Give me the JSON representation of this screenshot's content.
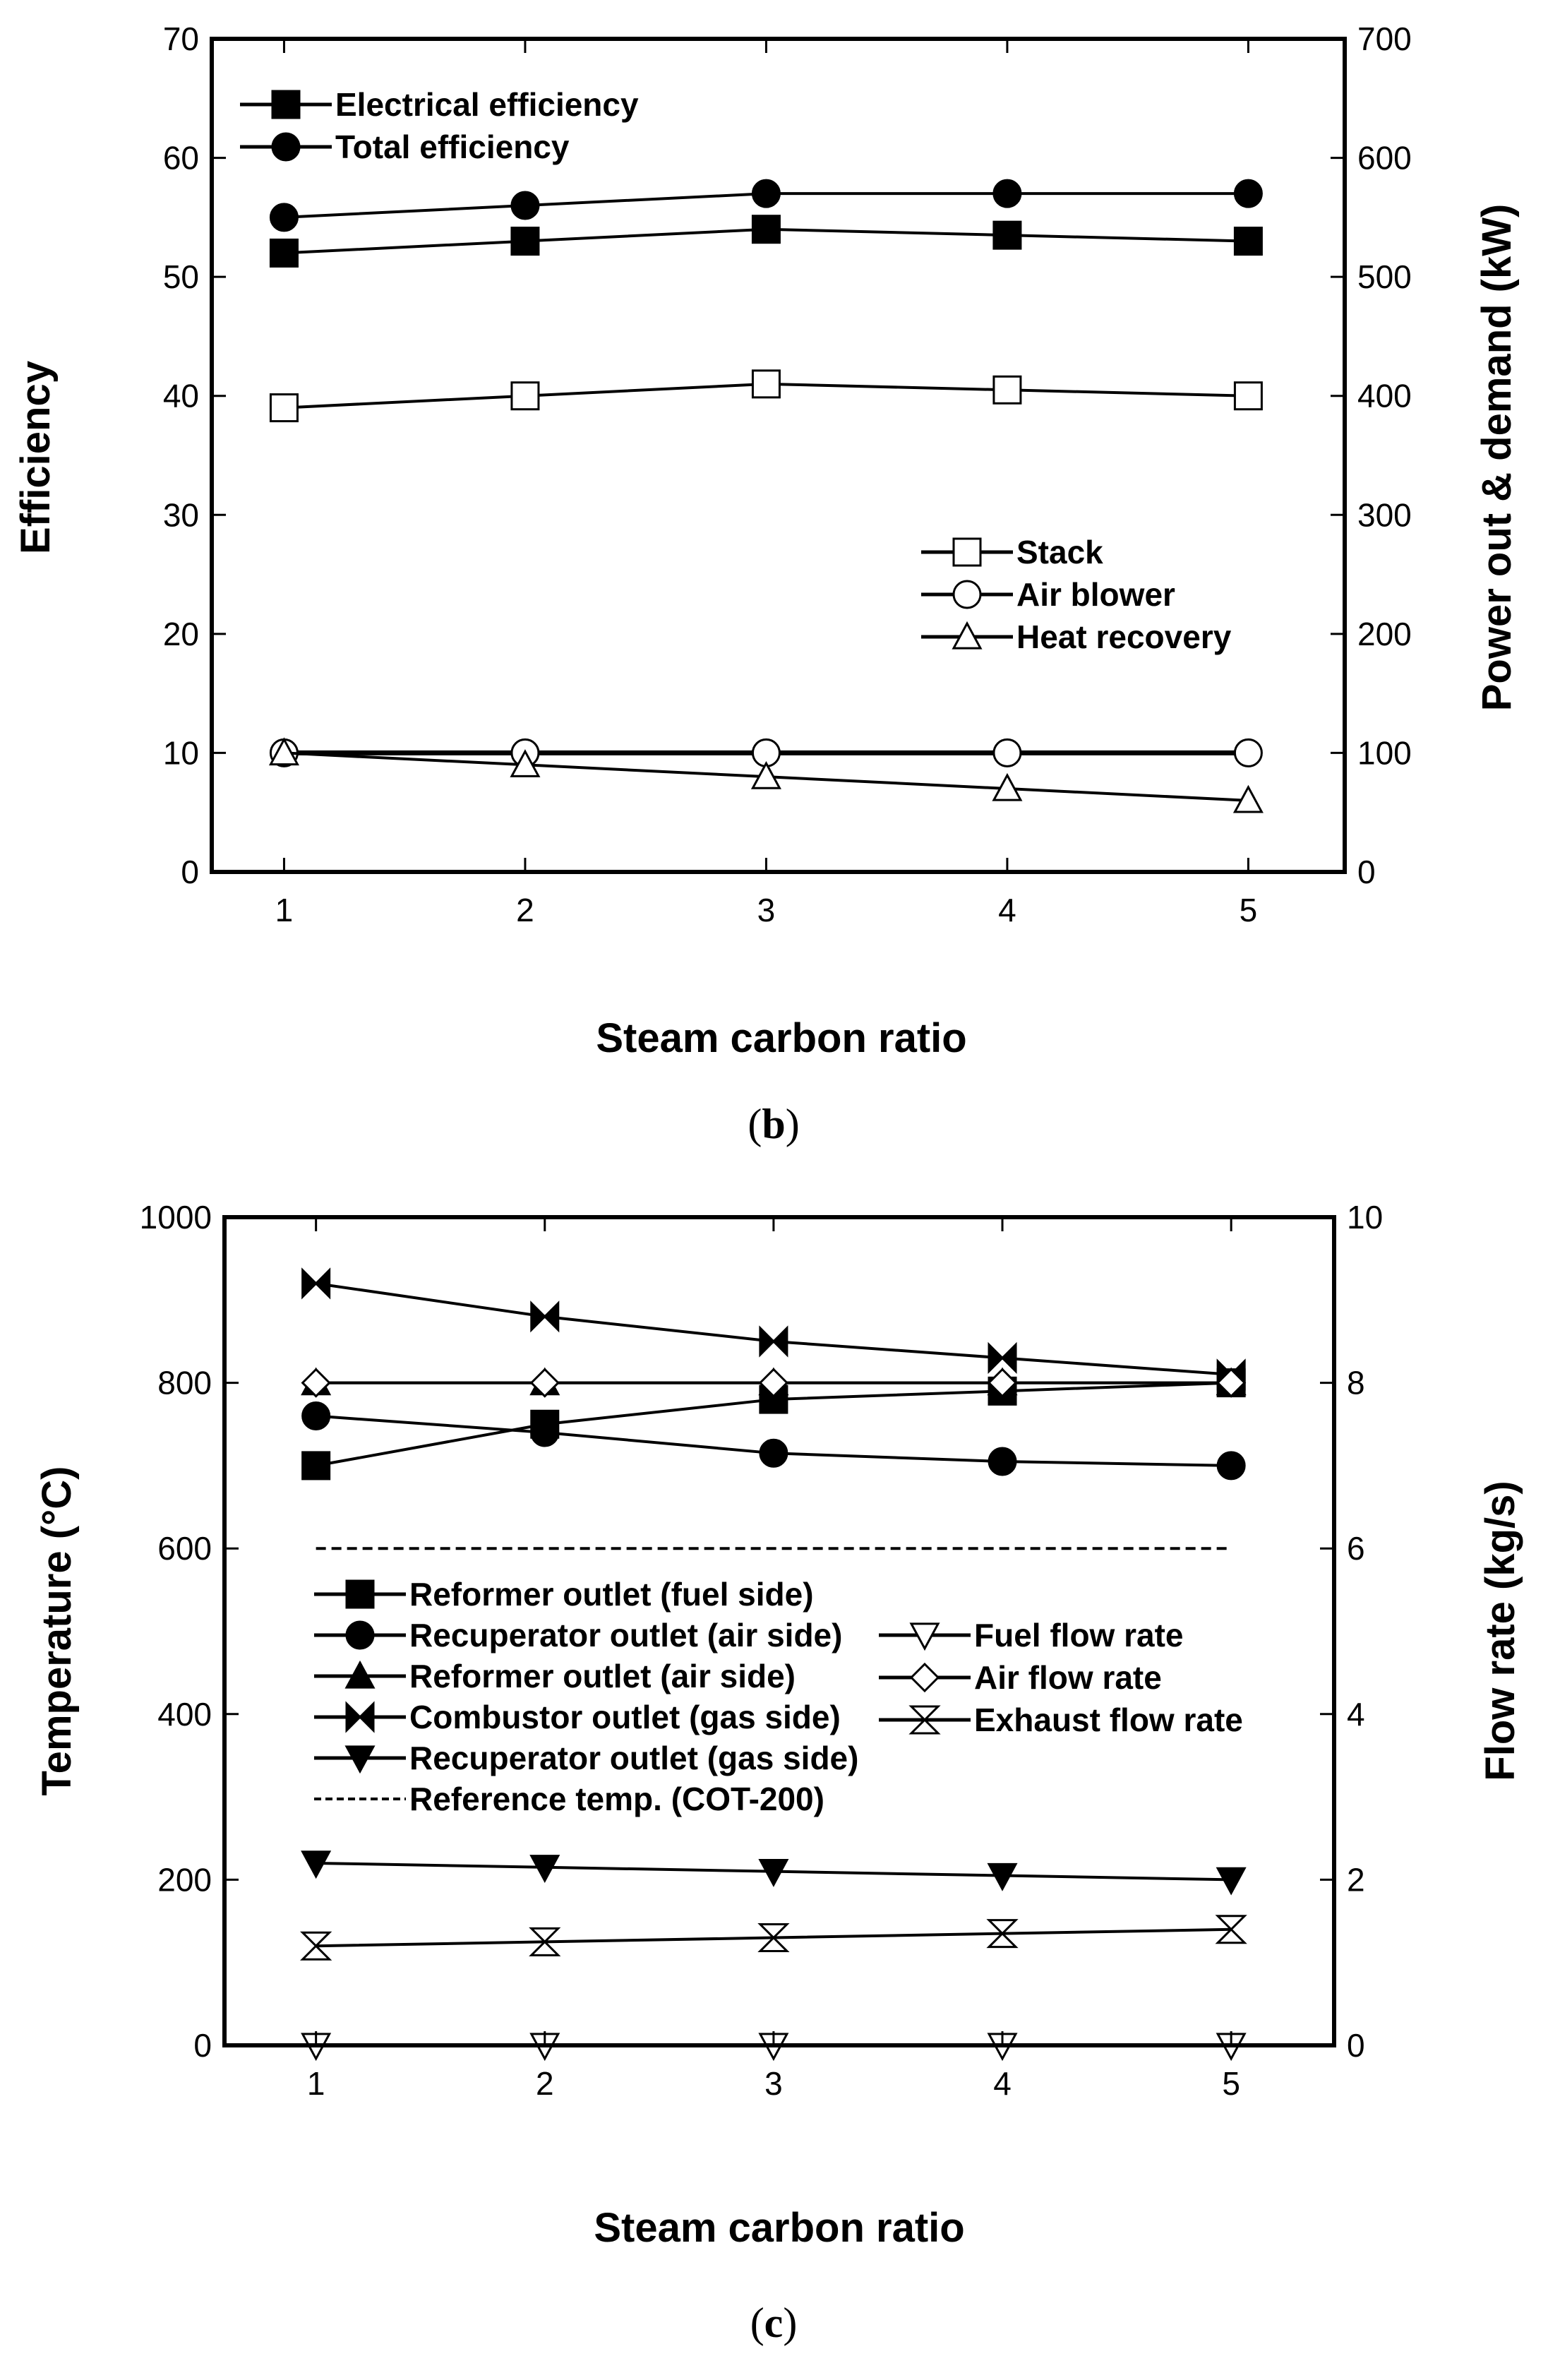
{
  "chart_data": [
    {
      "type": "line",
      "panel": "b",
      "caption_letter": "b",
      "xlabel": "Steam carbon ratio",
      "ylabel_left": "Efficiency",
      "ylabel_right": "Power out & demand (kW)",
      "x": [
        1,
        2,
        3,
        4,
        5
      ],
      "xlim": [
        0.7,
        5.4
      ],
      "ylim_left": [
        0,
        70
      ],
      "ylim_right": [
        0,
        700
      ],
      "xticks": [
        1,
        2,
        3,
        4,
        5
      ],
      "yticks_left": [
        0,
        10,
        20,
        30,
        40,
        50,
        60,
        70
      ],
      "yticks_right": [
        0,
        100,
        200,
        300,
        400,
        500,
        600,
        700
      ],
      "series": [
        {
          "name": "Electrical efficiency",
          "axis": "left",
          "marker": "square-filled",
          "values": [
            52,
            53,
            54,
            53.5,
            53
          ]
        },
        {
          "name": "Total efficiency",
          "axis": "left",
          "marker": "circle-filled",
          "values": [
            55,
            56,
            57,
            57,
            57
          ]
        },
        {
          "name": "Stack",
          "axis": "right",
          "marker": "square-open",
          "values": [
            390,
            400,
            410,
            405,
            400
          ]
        },
        {
          "name": "Air blower",
          "axis": "right",
          "marker": "circle-open",
          "values": [
            100,
            100,
            100,
            100,
            100
          ]
        },
        {
          "name": "Heat recovery",
          "axis": "right",
          "marker": "triangle-open",
          "values": [
            100,
            90,
            80,
            70,
            60
          ]
        }
      ],
      "legend_groups": [
        {
          "placement": "top-left",
          "entries": [
            "Electrical efficiency",
            "Total efficiency"
          ]
        },
        {
          "placement": "middle-right",
          "entries": [
            "Stack",
            "Air blower",
            "Heat recovery"
          ]
        }
      ]
    },
    {
      "type": "line",
      "panel": "c",
      "caption_letter": "c",
      "xlabel": "Steam carbon ratio",
      "ylabel_left": "Temperature (°C)",
      "ylabel_right": "Flow rate (kg/s)",
      "x": [
        1,
        2,
        3,
        4,
        5
      ],
      "xlim": [
        0.6,
        5.45
      ],
      "ylim_left": [
        0,
        1000
      ],
      "ylim_right": [
        0,
        10
      ],
      "xticks": [
        1,
        2,
        3,
        4,
        5
      ],
      "yticks_left": [
        0,
        200,
        400,
        600,
        800,
        1000
      ],
      "yticks_right": [
        0,
        2,
        4,
        6,
        8,
        10
      ],
      "series": [
        {
          "name": "Reformer outlet (fuel side)",
          "axis": "left",
          "marker": "square-filled",
          "values": [
            700,
            750,
            780,
            790,
            800
          ]
        },
        {
          "name": "Recuperator outlet (air side)",
          "axis": "left",
          "marker": "circle-filled",
          "values": [
            760,
            740,
            715,
            705,
            700
          ]
        },
        {
          "name": "Reformer outlet (air side)",
          "axis": "left",
          "marker": "triangle-up-filled",
          "values": [
            800,
            800,
            800,
            800,
            800
          ]
        },
        {
          "name": "Combustor outlet (gas side)",
          "axis": "left",
          "marker": "bowtie-filled",
          "values": [
            920,
            880,
            850,
            830,
            810
          ]
        },
        {
          "name": "Recuperator outlet (gas side)",
          "axis": "left",
          "marker": "triangle-down-filled",
          "values": [
            220,
            215,
            210,
            205,
            200
          ]
        },
        {
          "name": "Reference temp. (COT-200)",
          "axis": "left",
          "marker": "none",
          "dashed": true,
          "values": [
            600,
            600,
            600,
            600,
            600
          ]
        },
        {
          "name": "Fuel flow rate",
          "axis": "right",
          "marker": "triangle-down-open",
          "values": [
            0,
            0,
            0,
            0,
            0
          ]
        },
        {
          "name": "Air flow rate",
          "axis": "right",
          "marker": "diamond-open",
          "values": [
            8,
            8,
            8,
            8,
            8
          ]
        },
        {
          "name": "Exhaust flow rate",
          "axis": "right",
          "marker": "hourglass-open",
          "values": [
            1.2,
            1.25,
            1.3,
            1.35,
            1.4
          ]
        }
      ],
      "legend_groups": [
        {
          "placement": "center-left",
          "entries": [
            "Reformer outlet (fuel side)",
            "Recuperator outlet (air side)",
            "Reformer outlet (air side)",
            "Combustor outlet (gas side)",
            "Recuperator outlet (gas side)",
            "Reference temp. (COT-200)"
          ]
        },
        {
          "placement": "center-right",
          "entries": [
            "Fuel flow rate",
            "Air flow rate",
            "Exhaust flow rate"
          ]
        }
      ]
    }
  ]
}
